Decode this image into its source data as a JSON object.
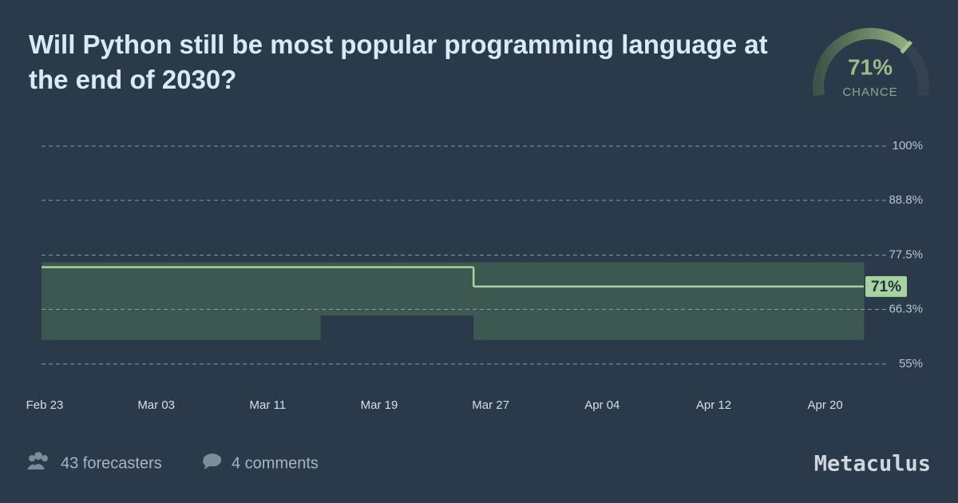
{
  "title": "Will Python still be most popular programming language at the end of 2030?",
  "chance": {
    "value": 71,
    "label": "71%",
    "caption": "CHANCE"
  },
  "footer": {
    "forecasters": "43 forecasters",
    "comments": "4 comments",
    "brand": "Metaculus"
  },
  "chart_data": {
    "type": "step",
    "xlim": [
      0,
      59
    ],
    "xticks": [
      {
        "value": 0,
        "label": "Feb 23"
      },
      {
        "value": 8,
        "label": "Mar 03"
      },
      {
        "value": 16,
        "label": "Mar 11"
      },
      {
        "value": 24,
        "label": "Mar 19"
      },
      {
        "value": 32,
        "label": "Mar 27"
      },
      {
        "value": 40,
        "label": "Apr 04"
      },
      {
        "value": 48,
        "label": "Apr 12"
      },
      {
        "value": 56,
        "label": "Apr 20"
      }
    ],
    "ylim": [
      55,
      100
    ],
    "yticks": [
      {
        "value": 100,
        "label": "100%"
      },
      {
        "value": 88.8,
        "label": "88.8%"
      },
      {
        "value": 77.5,
        "label": "77.5%"
      },
      {
        "value": 66.3,
        "label": "66.3%"
      },
      {
        "value": 55,
        "label": "55%"
      }
    ],
    "grid": true,
    "line": {
      "x": [
        0,
        31
      ],
      "values": [
        75,
        71
      ],
      "color": "#a6d3a0"
    },
    "band": {
      "x": [
        0,
        20,
        31
      ],
      "lower": [
        60,
        65,
        60
      ],
      "upper": [
        76,
        76,
        76
      ],
      "color": "#3d5851"
    },
    "current": {
      "value": 71,
      "label": "71%"
    }
  }
}
